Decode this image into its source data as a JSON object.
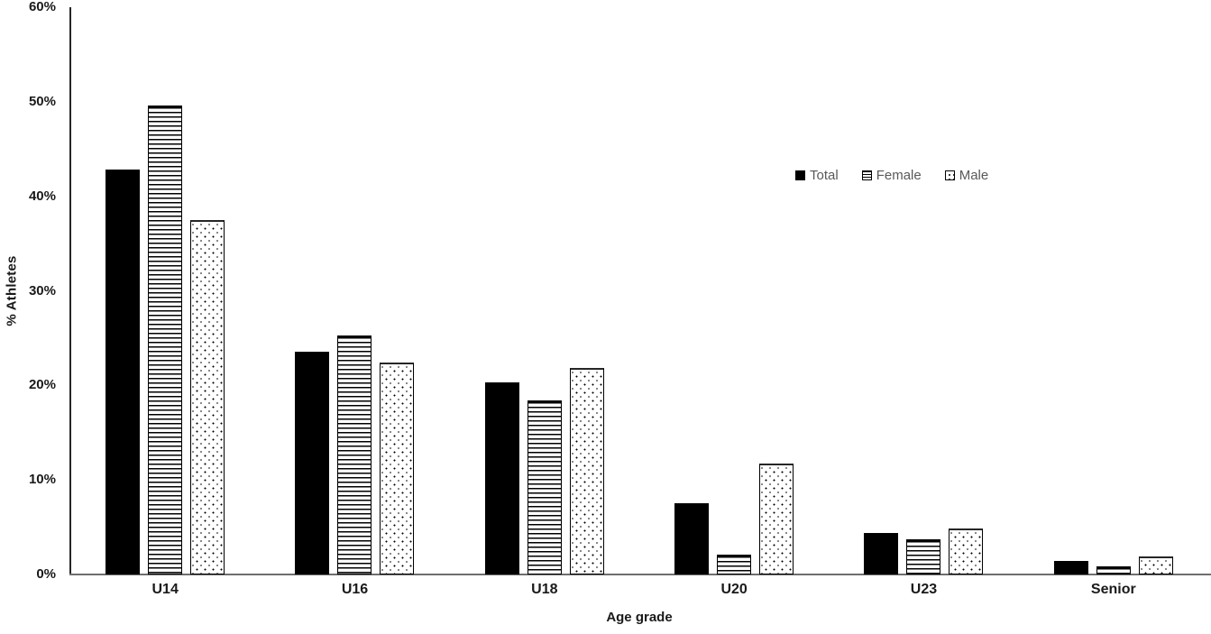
{
  "chart_data": {
    "type": "bar",
    "title": "",
    "categories": [
      "U14",
      "U16",
      "U18",
      "U20",
      "U23",
      "Senior"
    ],
    "series": [
      {
        "name": "Total",
        "pattern": "solid-black",
        "values": [
          42.8,
          23.6,
          20.3,
          7.5,
          4.4,
          1.4
        ]
      },
      {
        "name": "Female",
        "pattern": "horizontal-stripes",
        "values": [
          49.6,
          25.3,
          18.4,
          2.1,
          3.7,
          0.9
        ]
      },
      {
        "name": "Male",
        "pattern": "dots",
        "values": [
          37.5,
          22.4,
          21.8,
          11.7,
          4.9,
          1.9
        ]
      }
    ],
    "xlabel": "Age grade",
    "ylabel": "% Athletes",
    "ylim": [
      0,
      60
    ],
    "ytick_step": 10,
    "yticks": [
      "0%",
      "10%",
      "20%",
      "30%",
      "40%",
      "50%",
      "60%"
    ],
    "grid": false,
    "legend_position": "inside-upper-right",
    "colors": {
      "bar_fill": "#000000",
      "bar_outline": "#000000",
      "axis_line_y": "#262626",
      "axis_line_x": "#6e6e6e",
      "tick_label": "#1a1a1a",
      "legend_text": "#595959",
      "background": "#ffffff"
    }
  }
}
